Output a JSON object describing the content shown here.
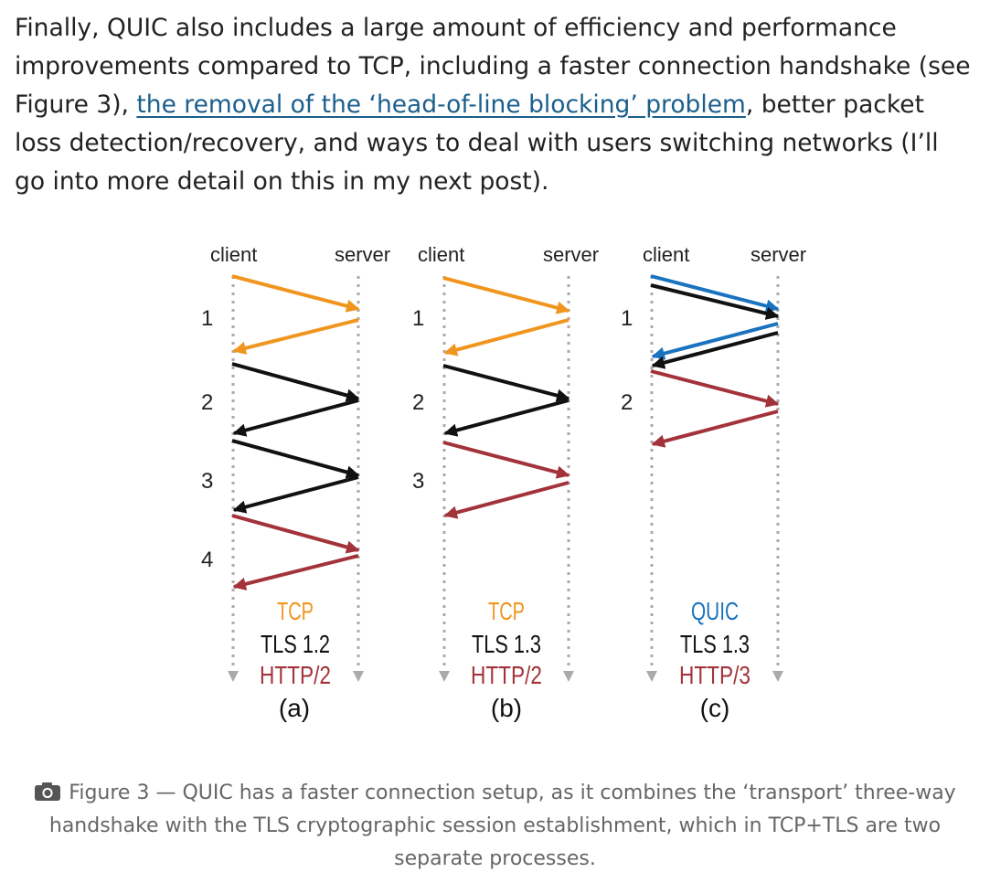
{
  "paragraph": {
    "before_link": "Finally, QUIC also includes a large amount of efficiency and performance improvements compared to TCP, including a faster connection handshake (see Figure 3), ",
    "link_text": "the removal of the ‘head-of-line blocking’ problem",
    "after_link": ", better packet loss detection/recovery, and ways to deal with users switching networks (I’ll go into more detail on this in my next post)."
  },
  "colors": {
    "tcp": "#f0951e",
    "tls": "#111111",
    "http": "#a3333a",
    "quic": "#1a73be",
    "timeline": "#aaaaaa"
  },
  "diagrams": [
    {
      "client_label": "client",
      "server_label": "server",
      "round_trips": [
        "1",
        "2",
        "3",
        "4"
      ],
      "protocols": [
        {
          "text": "TCP",
          "color": "tcp"
        },
        {
          "text": "TLS 1.2",
          "color": "tls"
        },
        {
          "text": "HTTP/2",
          "color": "http"
        }
      ],
      "sublabel": "(a)"
    },
    {
      "client_label": "client",
      "server_label": "server",
      "round_trips": [
        "1",
        "2",
        "3"
      ],
      "protocols": [
        {
          "text": "TCP",
          "color": "tcp"
        },
        {
          "text": "TLS 1.3",
          "color": "tls"
        },
        {
          "text": "HTTP/2",
          "color": "http"
        }
      ],
      "sublabel": "(b)"
    },
    {
      "client_label": "client",
      "server_label": "server",
      "round_trips": [
        "1",
        "2"
      ],
      "protocols": [
        {
          "text": "QUIC",
          "color": "quic"
        },
        {
          "text": "TLS 1.3",
          "color": "tls"
        },
        {
          "text": "HTTP/3",
          "color": "http"
        }
      ],
      "sublabel": "(c)"
    }
  ],
  "caption": {
    "icon": "camera-icon",
    "text": "Figure 3 — QUIC has a faster connection setup, as it combines the ‘transport’ three-way handshake with the TLS cryptographic session establishment, which in TCP+TLS are two separate processes."
  }
}
